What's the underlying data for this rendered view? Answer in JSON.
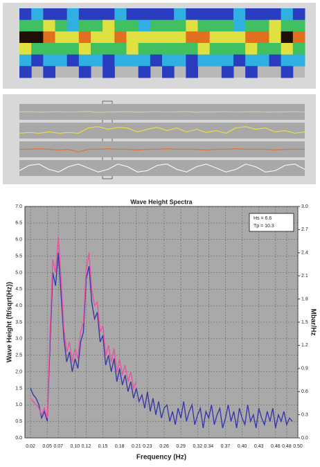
{
  "chart_data": [
    {
      "type": "heatmap",
      "colormap": [
        "#2a3cc0",
        "#30b0e0",
        "#40c060",
        "#e0e040",
        "#e07020",
        "#201008"
      ],
      "z": [
        [
          0,
          1,
          0,
          0,
          1,
          0,
          0,
          0,
          1,
          0,
          0,
          0,
          0,
          1,
          0,
          0,
          0,
          0,
          1,
          0,
          0,
          0,
          1,
          0
        ],
        [
          2,
          2,
          3,
          2,
          1,
          2,
          2,
          3,
          2,
          2,
          1,
          2,
          2,
          2,
          3,
          2,
          2,
          2,
          1,
          2,
          2,
          3,
          2,
          2
        ],
        [
          5,
          5,
          4,
          3,
          3,
          4,
          3,
          3,
          4,
          3,
          3,
          3,
          3,
          3,
          4,
          4,
          3,
          3,
          3,
          4,
          4,
          3,
          5,
          4
        ],
        [
          3,
          2,
          2,
          2,
          2,
          3,
          2,
          2,
          2,
          3,
          2,
          2,
          2,
          2,
          2,
          3,
          2,
          2,
          2,
          3,
          2,
          2,
          3,
          2
        ],
        [
          1,
          0,
          1,
          1,
          0,
          1,
          1,
          0,
          1,
          1,
          1,
          0,
          1,
          1,
          0,
          1,
          1,
          1,
          0,
          1,
          1,
          0,
          1,
          1
        ],
        [
          0,
          null,
          0,
          null,
          null,
          0,
          null,
          0,
          null,
          null,
          0,
          null,
          0,
          null,
          0,
          null,
          null,
          0,
          null,
          0,
          null,
          null,
          0,
          null
        ]
      ]
    },
    {
      "type": "strips",
      "ylim": [
        0,
        1
      ],
      "series": [
        {
          "color": "#c8d0a0",
          "values": [
            0.5,
            0.52,
            0.48,
            0.5,
            0.51,
            0.49,
            0.5,
            0.53,
            0.47,
            0.5,
            0.5,
            0.52,
            0.48,
            0.5,
            0.51,
            0.49,
            0.5,
            0.52,
            0.48,
            0.5,
            0.5,
            0.51,
            0.49,
            0.5,
            0.52,
            0.48,
            0.5,
            0.5,
            0.51,
            0.49
          ]
        },
        {
          "color": "#e8e040",
          "values": [
            0.3,
            0.35,
            0.3,
            0.4,
            0.3,
            0.35,
            0.3,
            0.7,
            0.8,
            0.6,
            0.75,
            0.7,
            0.4,
            0.6,
            0.75,
            0.5,
            0.7,
            0.4,
            0.6,
            0.35,
            0.5,
            0.3,
            0.7,
            0.8,
            0.6,
            0.7,
            0.4,
            0.5,
            0.3,
            0.4
          ]
        },
        {
          "color": "#e07030",
          "values": [
            0.5,
            0.5,
            0.55,
            0.5,
            0.45,
            0.5,
            0.3,
            0.5,
            0.5,
            0.55,
            0.5,
            0.5,
            0.45,
            0.5,
            0.5,
            0.55,
            0.5,
            0.5,
            0.5,
            0.45,
            0.5,
            0.5,
            0.55,
            0.5,
            0.5,
            0.5,
            0.45,
            0.5,
            0.5,
            0.5
          ]
        },
        {
          "color": "#f4f4f4",
          "values": [
            0.3,
            0.7,
            0.8,
            0.4,
            0.2,
            0.6,
            0.8,
            0.5,
            0.2,
            0.4,
            0.8,
            0.6,
            0.2,
            0.3,
            0.7,
            0.8,
            0.4,
            0.2,
            0.6,
            0.8,
            0.5,
            0.2,
            0.4,
            0.8,
            0.6,
            0.2,
            0.3,
            0.7,
            0.8,
            0.4
          ]
        }
      ]
    },
    {
      "type": "line",
      "title": "Wave Height Spectra",
      "xlabel": "Frequency (Hz)",
      "ylabel": "Wave Height (ft/sqrt(Hz))",
      "y2label": "Mbar/Hz",
      "annotations": [
        "Hs = 6.6",
        "Tp = 10.3"
      ],
      "grid": true,
      "xlim": [
        0.01,
        0.5
      ],
      "ylim": [
        0,
        7
      ],
      "y2lim": [
        0,
        3
      ],
      "xticks": [
        0.02,
        0.05,
        0.07,
        {
          "value": 0.1,
          "label": "0.10"
        },
        0.12,
        0.15,
        0.18,
        0.21,
        0.23,
        0.26,
        0.29,
        0.32,
        0.34,
        0.37,
        {
          "value": 0.4,
          "label": "0.40"
        },
        0.43,
        0.46,
        0.48,
        {
          "value": 0.5,
          "label": "0.50"
        }
      ],
      "yticks": [
        {
          "value": 0,
          "label": "0.0"
        },
        0.5,
        {
          "value": 1,
          "label": "1.0"
        },
        1.5,
        {
          "value": 2,
          "label": "2.0"
        },
        2.5,
        {
          "value": 3,
          "label": "3.0"
        },
        3.5,
        {
          "value": 4,
          "label": "4.0"
        },
        4.5,
        {
          "value": 5,
          "label": "5.0"
        },
        5.5,
        {
          "value": 6,
          "label": "6.0"
        },
        6.5,
        {
          "value": 7,
          "label": "7.0"
        }
      ],
      "y2ticks": [
        {
          "value": 0,
          "label": "0.0"
        },
        0.3,
        0.6,
        0.9,
        1.2,
        1.5,
        1.8,
        2.1,
        2.4,
        2.7,
        {
          "value": 3,
          "label": "3.0"
        }
      ],
      "series": [
        {
          "color": "#3838a8",
          "x": [
            0.02,
            0.025,
            0.03,
            0.035,
            0.04,
            0.045,
            0.05,
            0.055,
            0.06,
            0.065,
            0.07,
            0.075,
            0.08,
            0.085,
            0.09,
            0.095,
            0.1,
            0.105,
            0.11,
            0.115,
            0.12,
            0.125,
            0.13,
            0.135,
            0.14,
            0.145,
            0.15,
            0.155,
            0.16,
            0.165,
            0.17,
            0.175,
            0.18,
            0.185,
            0.19,
            0.195,
            0.2,
            0.205,
            0.21,
            0.215,
            0.22,
            0.225,
            0.23,
            0.235,
            0.24,
            0.245,
            0.25,
            0.255,
            0.26,
            0.265,
            0.27,
            0.275,
            0.28,
            0.285,
            0.29,
            0.295,
            0.3,
            0.305,
            0.31,
            0.315,
            0.32,
            0.325,
            0.33,
            0.335,
            0.34,
            0.345,
            0.35,
            0.355,
            0.36,
            0.365,
            0.37,
            0.375,
            0.38,
            0.385,
            0.39,
            0.395,
            0.4,
            0.405,
            0.41,
            0.415,
            0.42,
            0.425,
            0.43,
            0.435,
            0.44,
            0.445,
            0.45,
            0.455,
            0.46,
            0.465,
            0.47,
            0.475,
            0.48,
            0.485,
            0.49
          ],
          "values": [
            1.5,
            1.3,
            1.2,
            1.0,
            0.6,
            0.8,
            0.5,
            2.8,
            5.0,
            4.6,
            5.6,
            4.3,
            3.0,
            2.3,
            2.6,
            2.0,
            2.4,
            2.1,
            2.9,
            3.2,
            4.8,
            5.2,
            4.1,
            3.6,
            3.8,
            2.9,
            3.1,
            2.2,
            2.5,
            2.0,
            2.4,
            1.7,
            2.1,
            1.6,
            1.9,
            1.4,
            1.7,
            1.2,
            1.5,
            1.1,
            1.3,
            0.9,
            1.4,
            0.8,
            1.2,
            0.7,
            1.1,
            0.6,
            0.9,
            1.0,
            0.5,
            0.8,
            0.4,
            0.9,
            0.6,
            1.1,
            0.5,
            0.8,
            1.0,
            0.4,
            0.7,
            0.9,
            0.3,
            0.8,
            0.6,
            1.0,
            0.4,
            0.7,
            0.9,
            0.3,
            0.6,
            1.0,
            0.5,
            0.8,
            0.3,
            0.9,
            0.6,
            0.4,
            1.0,
            0.5,
            0.7,
            0.3,
            0.9,
            0.6,
            0.4,
            0.8,
            0.5,
            0.9,
            0.3,
            0.7,
            0.5,
            0.8,
            0.4,
            0.6,
            0.5
          ]
        },
        {
          "color": "#f050a0",
          "x": [
            0.02,
            0.025,
            0.03,
            0.035,
            0.04,
            0.045,
            0.05,
            0.055,
            0.06,
            0.065,
            0.07,
            0.075,
            0.08,
            0.085,
            0.09,
            0.095,
            0.1,
            0.105,
            0.11,
            0.115,
            0.12,
            0.125,
            0.13,
            0.135,
            0.14,
            0.145,
            0.15,
            0.155,
            0.16,
            0.165,
            0.17,
            0.175,
            0.18,
            0.185,
            0.19,
            0.195,
            0.2,
            0.205,
            0.21
          ],
          "values": [
            1.2,
            1.1,
            1.0,
            0.9,
            0.7,
            0.9,
            0.6,
            3.2,
            5.4,
            5.0,
            6.1,
            4.8,
            3.3,
            2.6,
            2.9,
            2.3,
            2.7,
            2.4,
            3.2,
            3.5,
            5.1,
            5.6,
            4.5,
            4.0,
            4.1,
            3.2,
            3.4,
            2.5,
            2.8,
            2.3,
            2.7,
            2.0,
            2.4,
            1.9,
            2.2,
            1.7,
            2.0,
            1.5,
            1.7
          ]
        }
      ]
    }
  ]
}
